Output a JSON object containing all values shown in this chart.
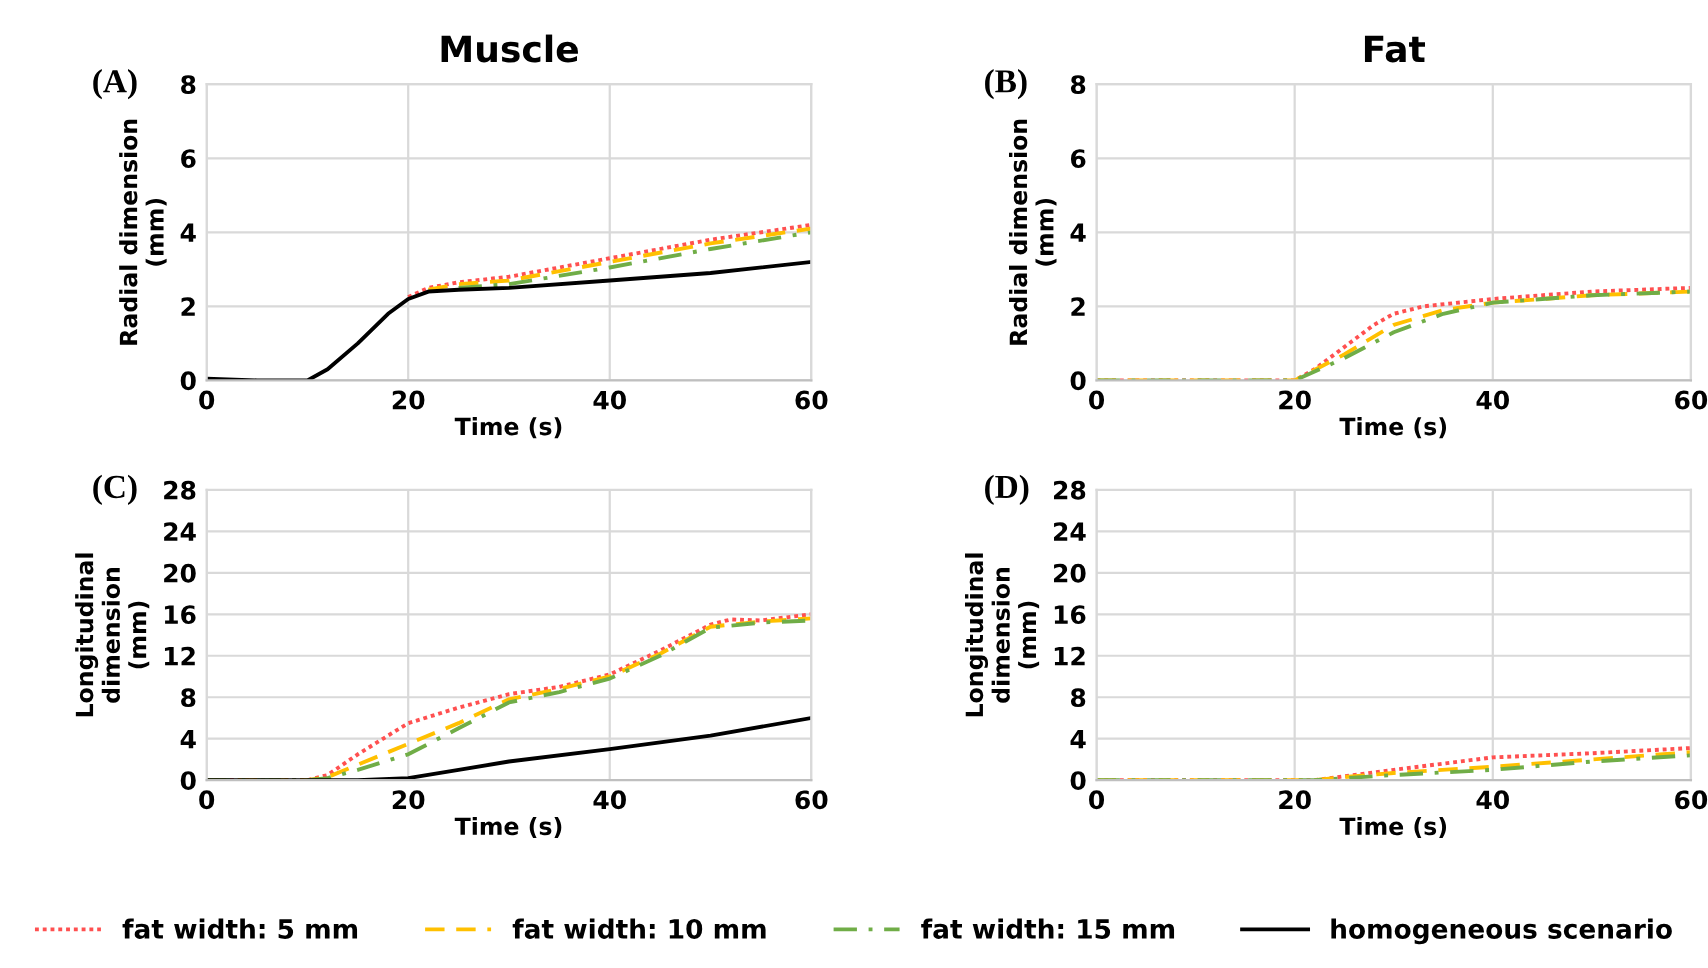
{
  "chart_data": [
    {
      "type": "line",
      "title": "Muscle",
      "annotations": [
        "(A)"
      ],
      "xlabel": "Time (s)",
      "ylabel": "Radial dimension\n(mm)",
      "xlim": [
        0,
        60
      ],
      "xticks": [
        0,
        20,
        40,
        60
      ],
      "ylim": [
        0,
        8
      ],
      "yticks": [
        0,
        2,
        4,
        6,
        8
      ],
      "grid": true,
      "legend": "bottom",
      "series": [
        {
          "name": "fat width: 5 mm",
          "color": "#ff5050",
          "line_style": "dotted",
          "x": [
            20,
            22,
            25,
            30,
            40,
            50,
            60
          ],
          "values": [
            2.25,
            2.5,
            2.65,
            2.8,
            3.3,
            3.8,
            4.2
          ]
        },
        {
          "name": "fat width: 10 mm",
          "color": "#ffc000",
          "line_style": "dashed",
          "x": [
            22,
            25,
            30,
            40,
            50,
            60
          ],
          "values": [
            2.45,
            2.6,
            2.7,
            3.2,
            3.7,
            4.1
          ]
        },
        {
          "name": "fat width: 15 mm",
          "color": "#70ad47",
          "line_style": "dashdot",
          "x": [
            25,
            30,
            40,
            50,
            60
          ],
          "values": [
            2.5,
            2.6,
            3.05,
            3.55,
            4.0
          ]
        },
        {
          "name": "homogeneous scenario",
          "color": "#000000",
          "line_style": "solid",
          "x": [
            0,
            5,
            10,
            12,
            15,
            18,
            20,
            22,
            25,
            30,
            40,
            50,
            60
          ],
          "values": [
            0.05,
            0,
            0,
            0.3,
            1.0,
            1.8,
            2.2,
            2.4,
            2.45,
            2.5,
            2.7,
            2.9,
            3.2
          ]
        }
      ]
    },
    {
      "type": "line",
      "title": "Fat",
      "annotations": [
        "(B)"
      ],
      "xlabel": "Time (s)",
      "ylabel": "Radial dimension\n(mm)",
      "xlim": [
        0,
        60
      ],
      "xticks": [
        0,
        20,
        40,
        60
      ],
      "ylim": [
        0,
        8
      ],
      "yticks": [
        0,
        2,
        4,
        6,
        8
      ],
      "grid": true,
      "series": [
        {
          "color": "#ff5050",
          "line_style": "dotted",
          "x": [
            0,
            10,
            20,
            22,
            25,
            28,
            30,
            33,
            40,
            50,
            60
          ],
          "values": [
            0,
            0,
            0,
            0.3,
            0.9,
            1.5,
            1.8,
            2.0,
            2.2,
            2.4,
            2.5
          ]
        },
        {
          "color": "#ffc000",
          "line_style": "dashed",
          "x": [
            0,
            10,
            20,
            25,
            30,
            35,
            40,
            50,
            60
          ],
          "values": [
            0,
            0,
            0,
            0.7,
            1.5,
            1.9,
            2.1,
            2.3,
            2.4
          ]
        },
        {
          "color": "#70ad47",
          "line_style": "dashdot",
          "x": [
            0,
            10,
            20,
            25,
            30,
            35,
            40,
            50,
            60
          ],
          "values": [
            0,
            0,
            0,
            0.6,
            1.3,
            1.8,
            2.1,
            2.3,
            2.4
          ]
        }
      ]
    },
    {
      "type": "line",
      "annotations": [
        "(C)"
      ],
      "xlabel": "Time (s)",
      "ylabel": "Longitudinal\ndimension\n(mm)",
      "xlim": [
        0,
        60
      ],
      "xticks": [
        0,
        20,
        40,
        60
      ],
      "ylim": [
        0,
        28
      ],
      "yticks": [
        0,
        4,
        8,
        12,
        16,
        20,
        24,
        28
      ],
      "grid": true,
      "series": [
        {
          "color": "#ff5050",
          "line_style": "dotted",
          "x": [
            0,
            10,
            12,
            15,
            20,
            25,
            30,
            35,
            40,
            45,
            50,
            52,
            55,
            60
          ],
          "values": [
            0,
            0,
            0.5,
            2.5,
            5.5,
            7.0,
            8.3,
            9.0,
            10.2,
            12.5,
            15.0,
            15.5,
            15.4,
            16.0
          ]
        },
        {
          "color": "#ffc000",
          "line_style": "dashed",
          "x": [
            0,
            10,
            12,
            15,
            20,
            25,
            30,
            35,
            40,
            45,
            50,
            55,
            60
          ],
          "values": [
            0,
            0,
            0.3,
            1.5,
            3.5,
            5.5,
            7.8,
            8.8,
            10.0,
            12.2,
            14.8,
            15.3,
            15.6
          ]
        },
        {
          "color": "#70ad47",
          "line_style": "dashdot",
          "x": [
            0,
            10,
            12,
            15,
            20,
            25,
            30,
            35,
            40,
            45,
            50,
            55,
            60
          ],
          "values": [
            0,
            0,
            0.2,
            1.0,
            2.5,
            5.0,
            7.5,
            8.5,
            9.8,
            12.0,
            14.7,
            15.2,
            15.4
          ]
        },
        {
          "color": "#000000",
          "line_style": "solid",
          "x": [
            0,
            15,
            20,
            25,
            30,
            40,
            50,
            60
          ],
          "values": [
            0,
            0,
            0.2,
            1.0,
            1.8,
            3.0,
            4.3,
            6.0
          ]
        }
      ]
    },
    {
      "type": "line",
      "annotations": [
        "(D)"
      ],
      "xlabel": "Time (s)",
      "ylabel": "Longitudinal\ndimension\n(mm)",
      "xlim": [
        0,
        60
      ],
      "xticks": [
        0,
        20,
        40,
        60
      ],
      "ylim": [
        0,
        28
      ],
      "yticks": [
        0,
        4,
        8,
        12,
        16,
        20,
        24,
        28
      ],
      "grid": true,
      "series": [
        {
          "color": "#ff5050",
          "line_style": "dotted",
          "x": [
            0,
            10,
            22,
            30,
            40,
            50,
            60
          ],
          "values": [
            0,
            0,
            0,
            1.0,
            2.2,
            2.6,
            3.1
          ]
        },
        {
          "color": "#ffc000",
          "line_style": "dashed",
          "x": [
            0,
            10,
            22,
            25,
            30,
            40,
            50,
            60
          ],
          "values": [
            0,
            0,
            0,
            0.3,
            0.7,
            1.3,
            2.0,
            2.7
          ]
        },
        {
          "color": "#70ad47",
          "line_style": "dashdot",
          "x": [
            0,
            10,
            22,
            25,
            30,
            40,
            50,
            60
          ],
          "values": [
            0,
            0,
            0,
            0.2,
            0.5,
            1.0,
            1.8,
            2.4
          ]
        }
      ]
    }
  ]
}
